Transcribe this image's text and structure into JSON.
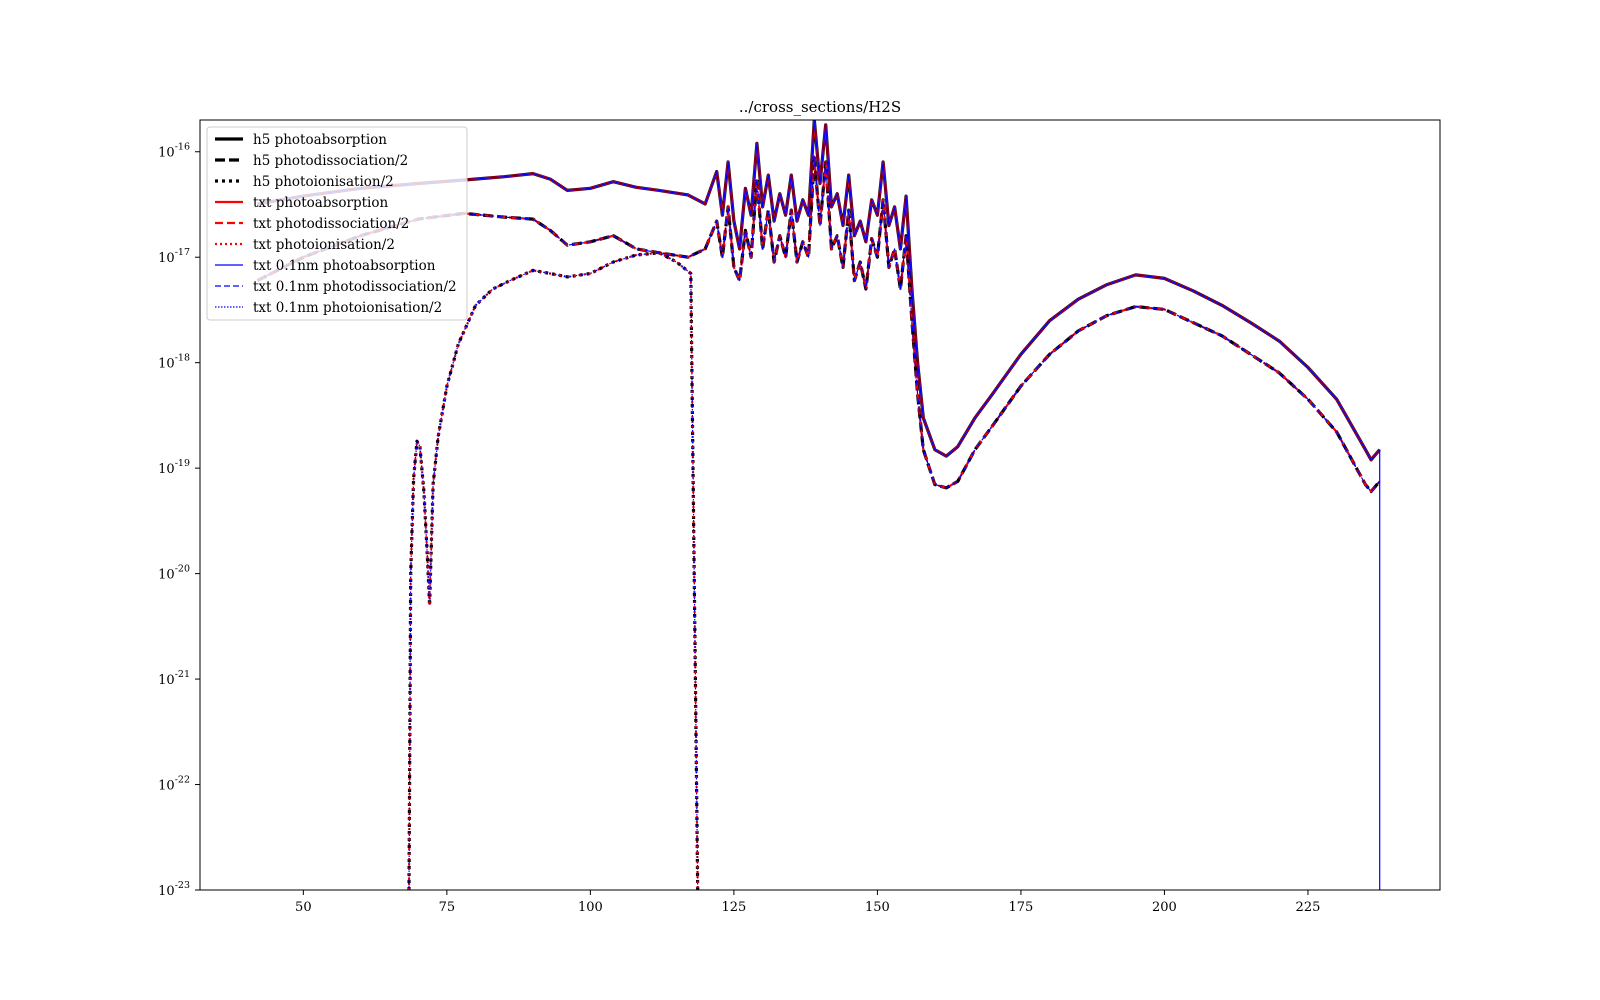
{
  "chart_data": {
    "type": "line",
    "title": "../cross_sections/H2S",
    "xlabel": "",
    "ylabel": "",
    "yscale": "log",
    "xlim": [
      32,
      248
    ],
    "ylim": [
      1e-23,
      2e-16
    ],
    "x_ticks": [
      50,
      75,
      100,
      125,
      150,
      175,
      200,
      225
    ],
    "x_tick_labels": [
      "50",
      "75",
      "100",
      "125",
      "150",
      "175",
      "200",
      "225"
    ],
    "y_ticks": [
      1e-23,
      1e-22,
      1e-21,
      1e-20,
      1e-19,
      1e-18,
      1e-17,
      1e-16
    ],
    "y_tick_labels": [
      {
        "base": "10",
        "exp": "-23"
      },
      {
        "base": "10",
        "exp": "-22"
      },
      {
        "base": "10",
        "exp": "-21"
      },
      {
        "base": "10",
        "exp": "-20"
      },
      {
        "base": "10",
        "exp": "-19"
      },
      {
        "base": "10",
        "exp": "-18"
      },
      {
        "base": "10",
        "exp": "-17"
      },
      {
        "base": "10",
        "exp": "-16"
      }
    ],
    "grid": false,
    "legend_position": "top-left",
    "legend": [
      {
        "label": "h5 photoabsorption",
        "color": "#000000",
        "width": 3.2,
        "dash": ""
      },
      {
        "label": "h5 photodissociation/2",
        "color": "#000000",
        "width": 3.2,
        "dash": "10 4"
      },
      {
        "label": "h5 photoionisation/2",
        "color": "#000000",
        "width": 3.2,
        "dash": "3 4"
      },
      {
        "label": "txt photoabsorption",
        "color": "#ff0000",
        "width": 2.2,
        "dash": ""
      },
      {
        "label": "txt photodissociation/2",
        "color": "#ff0000",
        "width": 2.2,
        "dash": "8 4"
      },
      {
        "label": "txt photoionisation/2",
        "color": "#ff0000",
        "width": 2.2,
        "dash": "2 3"
      },
      {
        "label": "txt 0.1nm photoabsorption",
        "color": "#0000ff",
        "width": 1.2,
        "dash": ""
      },
      {
        "label": "txt 0.1nm photodissociation/2",
        "color": "#0000ff",
        "width": 1.2,
        "dash": "6 3"
      },
      {
        "label": "txt 0.1nm photoionisation/2",
        "color": "#0000ff",
        "width": 1.2,
        "dash": "1.5 1.5"
      }
    ],
    "series": [
      {
        "role": "photoabsorption",
        "x": [
          42,
          50,
          60,
          70,
          78,
          85,
          90,
          93,
          96,
          100,
          104,
          108,
          112,
          117,
          120,
          122,
          123,
          124,
          125,
          126,
          127,
          128,
          129,
          130,
          131,
          132,
          133,
          134,
          135,
          136,
          137,
          138,
          139,
          140,
          141,
          142,
          143,
          144,
          145,
          146,
          147,
          148,
          149,
          150,
          151,
          152,
          153,
          154,
          155,
          156,
          157,
          158,
          160,
          162,
          164,
          167,
          170,
          175,
          180,
          185,
          190,
          195,
          200,
          205,
          210,
          215,
          220,
          225,
          230,
          235,
          236,
          237.5
        ],
        "y": [
          3.2e-17,
          3.8e-17,
          4.5e-17,
          5e-17,
          5.4e-17,
          5.8e-17,
          6.2e-17,
          5.5e-17,
          4.3e-17,
          4.5e-17,
          5.2e-17,
          4.6e-17,
          4.3e-17,
          3.9e-17,
          3.2e-17,
          6.5e-17,
          2.5e-17,
          8e-17,
          2.2e-17,
          1.2e-17,
          4.5e-17,
          2.5e-17,
          1.2e-16,
          3e-17,
          6e-17,
          2.2e-17,
          4e-17,
          2.5e-17,
          6e-17,
          2.2e-17,
          3.5e-17,
          2.5e-17,
          2e-16,
          5e-17,
          1.8e-16,
          3e-17,
          4e-17,
          2e-17,
          6e-17,
          1.6e-17,
          2.2e-17,
          1.4e-17,
          3.5e-17,
          2.5e-17,
          8e-17,
          2e-17,
          3e-17,
          1.2e-17,
          3.8e-17,
          5e-18,
          1e-18,
          3e-19,
          1.5e-19,
          1.3e-19,
          1.6e-19,
          3e-19,
          5e-19,
          1.2e-18,
          2.5e-18,
          4e-18,
          5.5e-18,
          6.8e-18,
          6.3e-18,
          4.8e-18,
          3.5e-18,
          2.4e-18,
          1.6e-18,
          9e-19,
          4.5e-19,
          1.5e-19,
          1.2e-19,
          1.5e-19
        ]
      },
      {
        "role": "photodissociation/2",
        "x": [
          42,
          50,
          60,
          70,
          78,
          85,
          90,
          93,
          96,
          100,
          104,
          108,
          112,
          117,
          120,
          122,
          123,
          124,
          125,
          126,
          127,
          128,
          129,
          130,
          131,
          132,
          133,
          134,
          135,
          136,
          137,
          138,
          139,
          140,
          141,
          142,
          143,
          144,
          145,
          146,
          147,
          148,
          149,
          150,
          151,
          152,
          153,
          154,
          155,
          156,
          157,
          158,
          160,
          162,
          164,
          167,
          170,
          175,
          180,
          185,
          190,
          195,
          200,
          205,
          210,
          215,
          220,
          225,
          230,
          235,
          236,
          237.5
        ],
        "y": [
          6e-18,
          1e-17,
          1.6e-17,
          2.3e-17,
          2.6e-17,
          2.4e-17,
          2.3e-17,
          1.8e-17,
          1.3e-17,
          1.4e-17,
          1.6e-17,
          1.2e-17,
          1.1e-17,
          1e-17,
          1.2e-17,
          2.2e-17,
          1e-17,
          3e-17,
          8e-18,
          6e-18,
          1.8e-17,
          1e-17,
          5.5e-17,
          1.2e-17,
          2.8e-17,
          9e-18,
          1.6e-17,
          1e-17,
          2.8e-17,
          9e-18,
          1.4e-17,
          1e-17,
          9e-17,
          2e-17,
          8e-17,
          1.2e-17,
          1.6e-17,
          8e-18,
          2.8e-17,
          6e-18,
          9e-18,
          5e-18,
          1.5e-17,
          1e-17,
          3.5e-17,
          8e-18,
          1.2e-17,
          5e-18,
          1.6e-17,
          2.5e-18,
          5e-19,
          1.5e-19,
          7e-20,
          6.5e-20,
          7.5e-20,
          1.5e-19,
          2.5e-19,
          6e-19,
          1.2e-18,
          2e-18,
          2.8e-18,
          3.4e-18,
          3.2e-18,
          2.4e-18,
          1.8e-18,
          1.2e-18,
          8e-19,
          4.5e-19,
          2.2e-19,
          7e-20,
          6e-20,
          7.5e-20
        ]
      },
      {
        "role": "photoionisation/2",
        "x": [
          68.4,
          68.7,
          69.2,
          69.8,
          70.3,
          71,
          71.6,
          72,
          72.6,
          73.5,
          75,
          77,
          80,
          83,
          86,
          90,
          93,
          96,
          100,
          104,
          108,
          112,
          115,
          117.5,
          118.3,
          118.7
        ],
        "y": [
          1e-23,
          1e-20,
          8e-20,
          1.8e-19,
          1.6e-19,
          6e-20,
          1.5e-20,
          5e-21,
          7e-20,
          2e-19,
          6e-19,
          1.5e-18,
          3.5e-18,
          5e-18,
          6e-18,
          7.5e-18,
          7e-18,
          6.5e-18,
          7e-18,
          9e-18,
          1.05e-17,
          1.1e-17,
          9e-18,
          7e-18,
          1e-21,
          1e-23
        ]
      },
      {
        "role": "cutoff-drop",
        "x": [
          237.5,
          237.5
        ],
        "y": [
          1.5e-19,
          1e-23
        ]
      }
    ]
  }
}
